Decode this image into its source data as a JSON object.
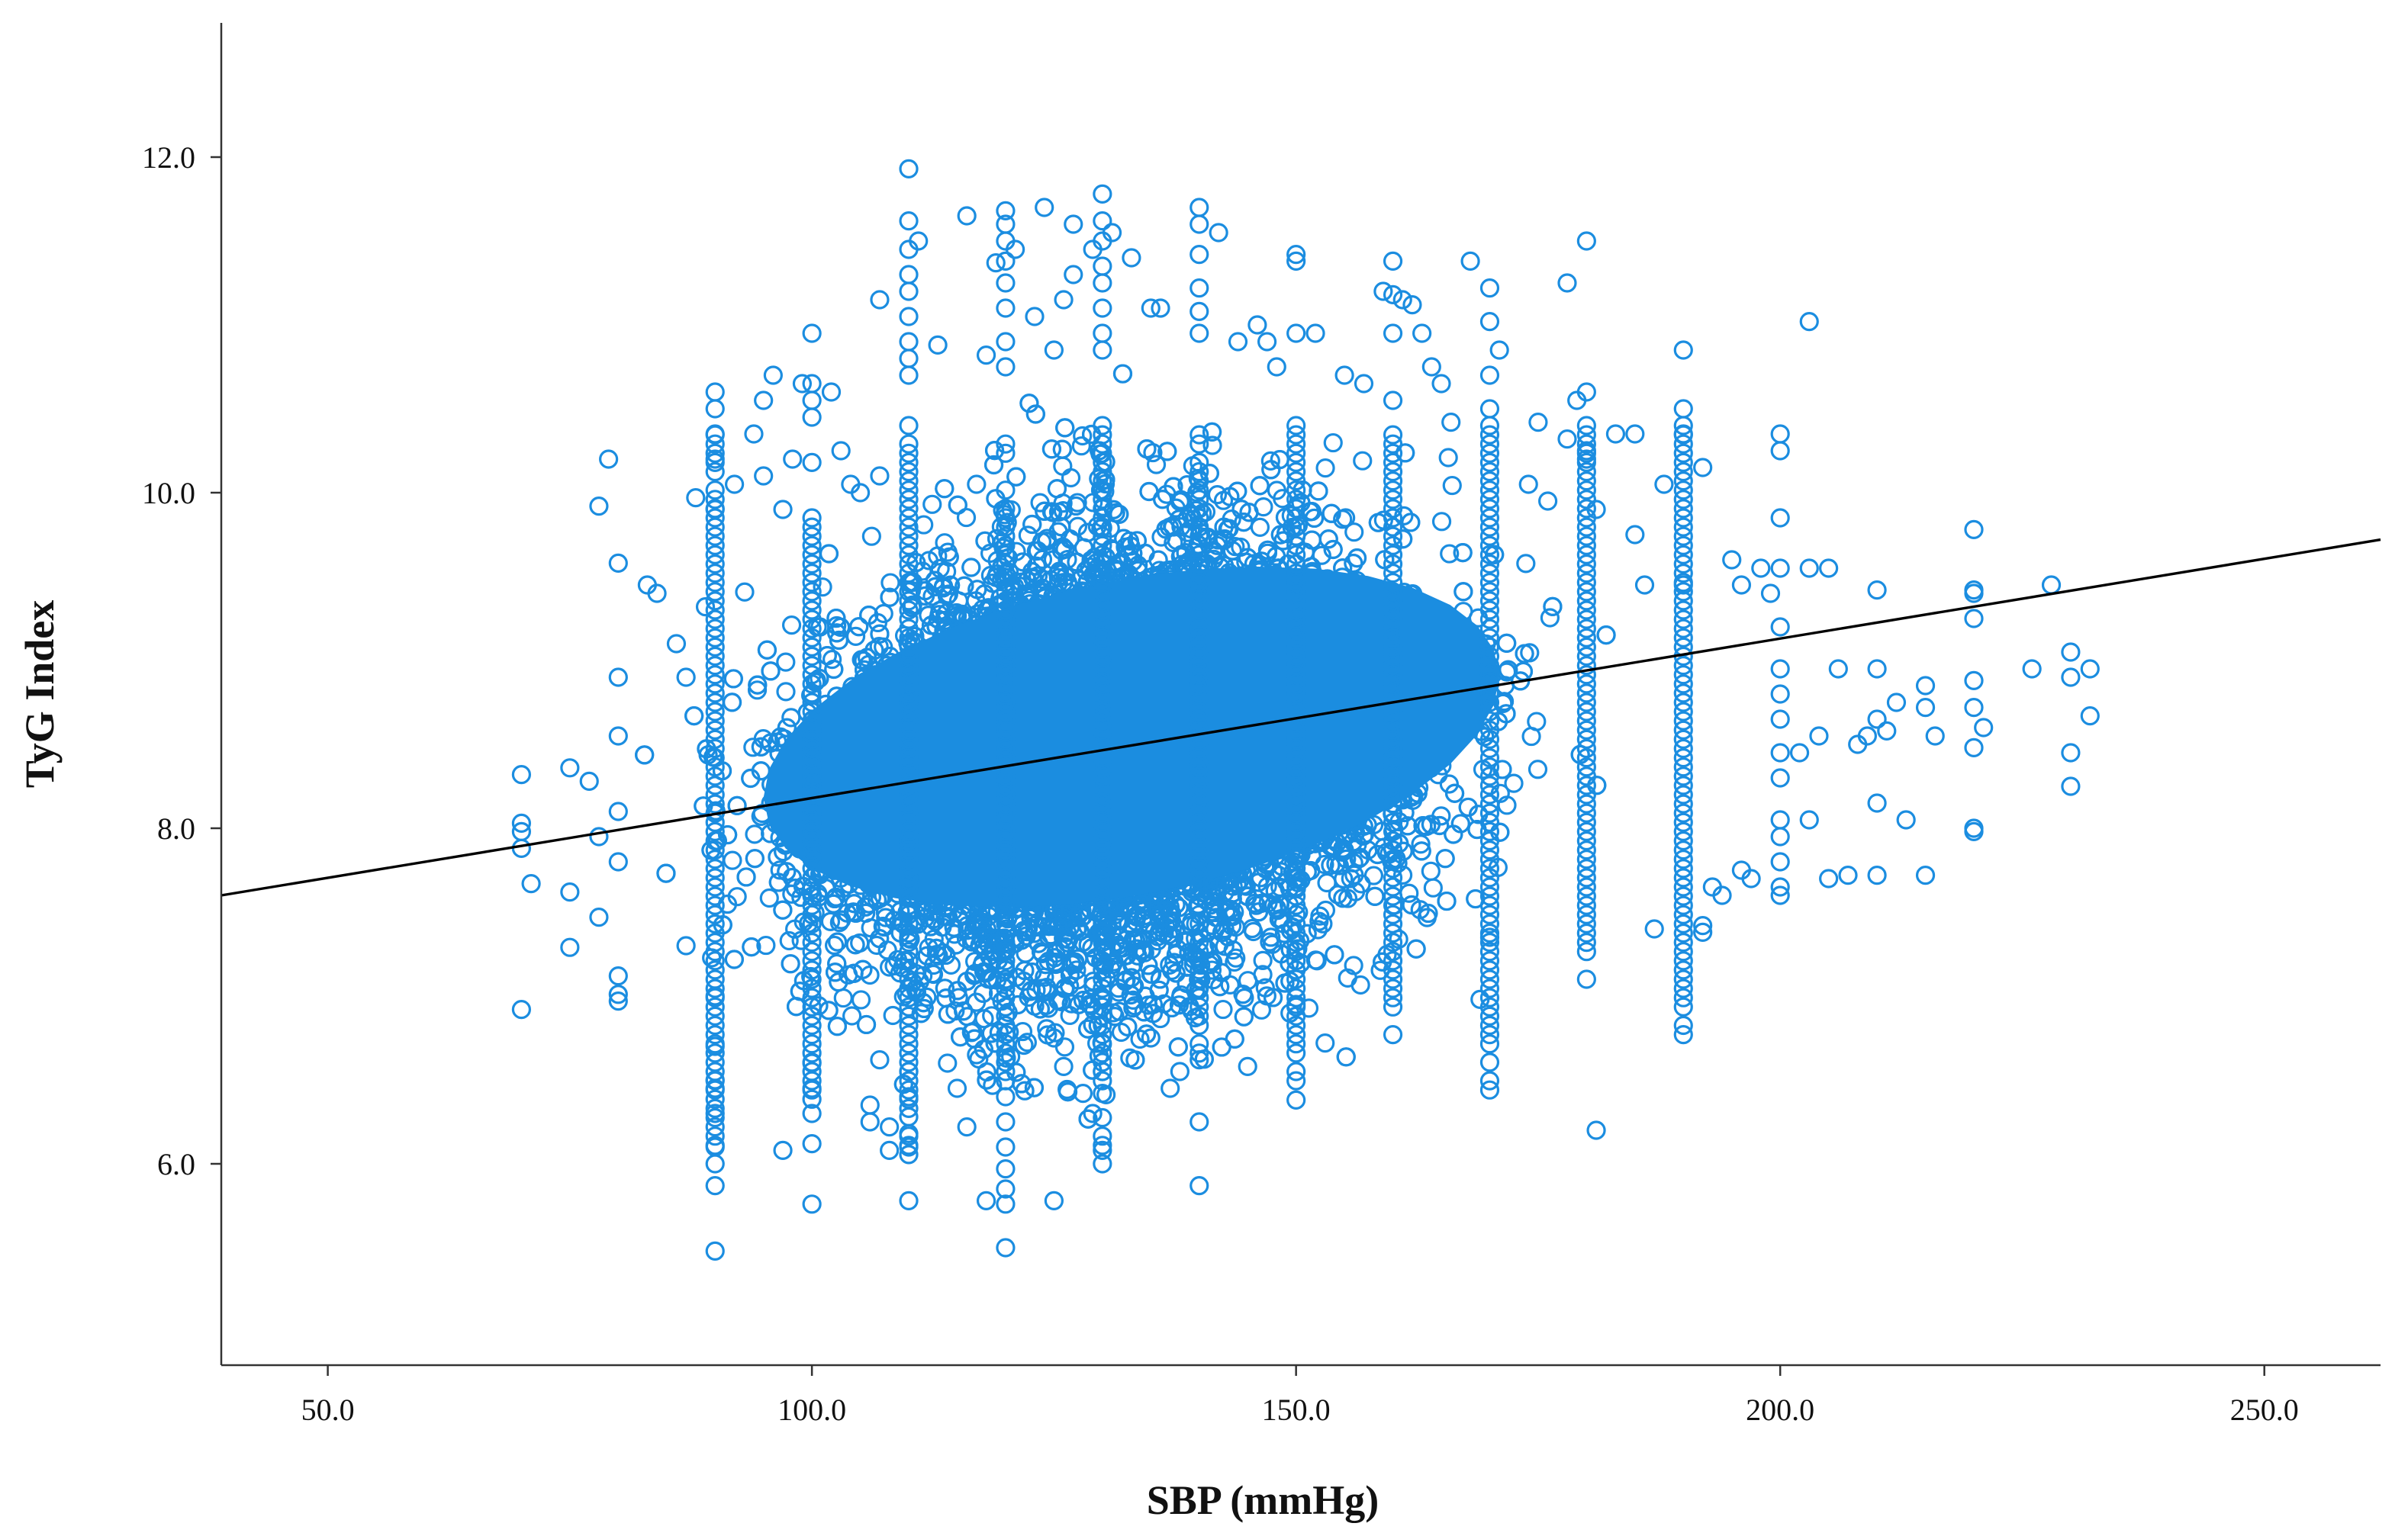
{
  "chart_data": {
    "type": "scatter",
    "title": "",
    "xlabel": "SBP (mmHg)",
    "ylabel": "TyG Index",
    "xlim": [
      39,
      262
    ],
    "ylim": [
      4.8,
      12.8
    ],
    "x_ticks": [
      50,
      100,
      150,
      200,
      250
    ],
    "x_tick_labels": [
      "50.0",
      "100.0",
      "150.0",
      "200.0",
      "250.0"
    ],
    "y_ticks": [
      6,
      8,
      10,
      12
    ],
    "y_tick_labels": [
      "6.0",
      "8.0",
      "10.0",
      "12.0"
    ],
    "grid": false,
    "legend": "none",
    "marker": "open-circle",
    "point_color": "#1b8de0",
    "line_color": "#000000",
    "fit_line": {
      "x": [
        39,
        262
      ],
      "y": [
        7.6,
        9.72
      ]
    },
    "series": [
      {
        "points": [
          [
            70,
            8.32
          ],
          [
            70,
            8.03
          ],
          [
            70,
            7.98
          ],
          [
            70,
            7.88
          ],
          [
            70,
            6.92
          ],
          [
            71,
            7.67
          ],
          [
            75,
            7.62
          ],
          [
            75,
            7.29
          ],
          [
            75,
            8.36
          ],
          [
            77,
            8.28
          ],
          [
            78,
            7.47
          ],
          [
            78,
            7.95
          ],
          [
            78,
            9.92
          ],
          [
            79,
            10.2
          ],
          [
            80,
            9.58
          ],
          [
            80,
            8.9
          ],
          [
            80,
            7.12
          ],
          [
            80,
            6.97
          ],
          [
            80,
            7.01
          ],
          [
            80,
            8.55
          ],
          [
            80,
            8.1
          ],
          [
            80,
            7.8
          ],
          [
            83,
            9.45
          ],
          [
            84,
            9.4
          ],
          [
            86,
            9.1
          ],
          [
            87,
            8.9
          ],
          [
            87,
            7.3
          ],
          [
            88,
            9.97
          ],
          [
            89,
            9.32
          ],
          [
            90,
            10.6
          ],
          [
            90,
            10.5
          ],
          [
            90,
            10.35
          ],
          [
            90,
            10.2
          ],
          [
            90,
            9.9
          ],
          [
            90,
            7.0
          ],
          [
            90,
            6.7
          ],
          [
            90,
            6.5
          ],
          [
            90,
            6.45
          ],
          [
            90,
            6.3
          ],
          [
            90,
            6.1
          ],
          [
            90,
            5.87
          ],
          [
            90,
            5.48
          ],
          [
            92,
            10.05
          ],
          [
            94,
            10.35
          ],
          [
            95,
            10.55
          ],
          [
            95,
            10.1
          ],
          [
            96,
            10.7
          ],
          [
            97,
            9.9
          ],
          [
            97,
            6.08
          ],
          [
            98,
            10.2
          ],
          [
            99,
            10.65
          ],
          [
            100,
            10.95
          ],
          [
            100,
            10.65
          ],
          [
            100,
            10.55
          ],
          [
            100,
            10.45
          ],
          [
            100,
            6.6
          ],
          [
            100,
            6.45
          ],
          [
            100,
            6.3
          ],
          [
            100,
            6.12
          ],
          [
            100,
            5.76
          ],
          [
            102,
            10.6
          ],
          [
            103,
            10.25
          ],
          [
            104,
            10.05
          ],
          [
            105,
            10.0
          ],
          [
            106,
            6.25
          ],
          [
            106,
            6.35
          ],
          [
            107,
            10.1
          ],
          [
            107,
            11.15
          ],
          [
            107,
            6.62
          ],
          [
            108,
            6.22
          ],
          [
            108,
            6.08
          ],
          [
            110,
            11.93
          ],
          [
            110,
            11.62
          ],
          [
            110,
            11.45
          ],
          [
            110,
            11.3
          ],
          [
            110,
            11.2
          ],
          [
            110,
            11.05
          ],
          [
            110,
            10.9
          ],
          [
            110,
            10.8
          ],
          [
            110,
            10.7
          ],
          [
            110,
            6.55
          ],
          [
            110,
            6.4
          ],
          [
            110,
            6.28
          ],
          [
            110,
            6.18
          ],
          [
            110,
            6.1
          ],
          [
            110,
            5.78
          ],
          [
            111,
            11.5
          ],
          [
            113,
            10.88
          ],
          [
            114,
            6.6
          ],
          [
            115,
            6.45
          ],
          [
            116,
            6.22
          ],
          [
            116,
            11.65
          ],
          [
            117,
            10.05
          ],
          [
            117,
            6.65
          ],
          [
            118,
            10.82
          ],
          [
            118,
            5.78
          ],
          [
            119,
            11.37
          ],
          [
            120,
            11.68
          ],
          [
            120,
            11.6
          ],
          [
            120,
            11.5
          ],
          [
            120,
            11.38
          ],
          [
            120,
            11.25
          ],
          [
            120,
            11.1
          ],
          [
            120,
            10.9
          ],
          [
            120,
            10.75
          ],
          [
            120,
            6.55
          ],
          [
            120,
            6.4
          ],
          [
            120,
            6.25
          ],
          [
            120,
            6.1
          ],
          [
            120,
            5.97
          ],
          [
            120,
            5.85
          ],
          [
            120,
            5.76
          ],
          [
            120,
            5.5
          ],
          [
            121,
            11.45
          ],
          [
            123,
            11.05
          ],
          [
            124,
            11.7
          ],
          [
            125,
            10.85
          ],
          [
            125,
            6.75
          ],
          [
            125,
            5.78
          ],
          [
            126,
            11.15
          ],
          [
            126,
            6.58
          ],
          [
            127,
            11.6
          ],
          [
            127,
            11.3
          ],
          [
            128,
            6.42
          ],
          [
            129,
            11.45
          ],
          [
            129,
            6.3
          ],
          [
            130,
            11.78
          ],
          [
            130,
            11.62
          ],
          [
            130,
            11.5
          ],
          [
            130,
            11.35
          ],
          [
            130,
            11.25
          ],
          [
            130,
            11.1
          ],
          [
            130,
            10.95
          ],
          [
            130,
            10.85
          ],
          [
            130,
            6.55
          ],
          [
            130,
            6.42
          ],
          [
            130,
            6.08
          ],
          [
            130,
            6.0
          ],
          [
            131,
            11.55
          ],
          [
            133,
            11.4
          ],
          [
            135,
            11.1
          ],
          [
            135,
            6.75
          ],
          [
            136,
            11.1
          ],
          [
            137,
            6.45
          ],
          [
            138,
            6.55
          ],
          [
            140,
            11.7
          ],
          [
            140,
            11.6
          ],
          [
            140,
            11.42
          ],
          [
            140,
            11.22
          ],
          [
            140,
            11.08
          ],
          [
            140,
            10.95
          ],
          [
            140,
            6.88
          ],
          [
            140,
            6.62
          ],
          [
            140,
            6.25
          ],
          [
            140,
            5.87
          ],
          [
            142,
            11.55
          ],
          [
            144,
            10.9
          ],
          [
            145,
            6.58
          ],
          [
            146,
            11.0
          ],
          [
            147,
            10.9
          ],
          [
            148,
            10.75
          ],
          [
            150,
            11.42
          ],
          [
            150,
            11.38
          ],
          [
            150,
            10.95
          ],
          [
            150,
            6.95
          ],
          [
            150,
            6.38
          ],
          [
            152,
            10.95
          ],
          [
            153,
            6.72
          ],
          [
            155,
            10.7
          ],
          [
            157,
            10.65
          ],
          [
            159,
            11.2
          ],
          [
            160,
            11.38
          ],
          [
            160,
            11.18
          ],
          [
            160,
            10.95
          ],
          [
            160,
            10.55
          ],
          [
            161,
            11.15
          ],
          [
            162,
            11.12
          ],
          [
            163,
            10.95
          ],
          [
            164,
            10.75
          ],
          [
            165,
            10.65
          ],
          [
            166,
            10.42
          ],
          [
            168,
            11.38
          ],
          [
            169,
            6.98
          ],
          [
            170,
            11.22
          ],
          [
            170,
            11.02
          ],
          [
            170,
            10.7
          ],
          [
            170,
            10.5
          ],
          [
            170,
            7.35
          ],
          [
            171,
            10.85
          ],
          [
            174,
            10.05
          ],
          [
            175,
            10.42
          ],
          [
            176,
            9.95
          ],
          [
            178,
            11.25
          ],
          [
            178,
            10.32
          ],
          [
            179,
            10.55
          ],
          [
            180,
            11.5
          ],
          [
            180,
            10.6
          ],
          [
            180,
            10.25
          ],
          [
            180,
            10.2
          ],
          [
            181,
            6.2
          ],
          [
            181,
            9.9
          ],
          [
            183,
            10.35
          ],
          [
            185,
            10.35
          ],
          [
            185,
            9.75
          ],
          [
            186,
            9.45
          ],
          [
            187,
            7.4
          ],
          [
            188,
            10.05
          ],
          [
            190,
            10.85
          ],
          [
            190,
            10.5
          ],
          [
            190,
            10.35
          ],
          [
            190,
            9.45
          ],
          [
            192,
            10.15
          ],
          [
            192,
            7.42
          ],
          [
            192,
            7.38
          ],
          [
            193,
            7.65
          ],
          [
            194,
            7.6
          ],
          [
            195,
            9.6
          ],
          [
            196,
            9.45
          ],
          [
            196,
            7.75
          ],
          [
            197,
            7.7
          ],
          [
            198,
            9.55
          ],
          [
            199,
            9.4
          ],
          [
            200,
            10.35
          ],
          [
            200,
            10.25
          ],
          [
            200,
            9.85
          ],
          [
            200,
            9.55
          ],
          [
            200,
            9.2
          ],
          [
            200,
            8.95
          ],
          [
            200,
            8.8
          ],
          [
            200,
            8.65
          ],
          [
            200,
            8.45
          ],
          [
            200,
            8.3
          ],
          [
            200,
            8.05
          ],
          [
            200,
            7.95
          ],
          [
            200,
            7.8
          ],
          [
            200,
            7.65
          ],
          [
            200,
            7.6
          ],
          [
            202,
            8.45
          ],
          [
            203,
            9.55
          ],
          [
            203,
            11.02
          ],
          [
            203,
            8.05
          ],
          [
            204,
            8.55
          ],
          [
            205,
            9.55
          ],
          [
            205,
            7.7
          ],
          [
            206,
            8.95
          ],
          [
            207,
            7.72
          ],
          [
            208,
            8.5
          ],
          [
            209,
            8.55
          ],
          [
            210,
            9.42
          ],
          [
            210,
            8.95
          ],
          [
            210,
            8.65
          ],
          [
            210,
            8.15
          ],
          [
            210,
            7.72
          ],
          [
            211,
            8.58
          ],
          [
            212,
            8.75
          ],
          [
            213,
            8.05
          ],
          [
            215,
            8.85
          ],
          [
            215,
            8.72
          ],
          [
            215,
            7.72
          ],
          [
            216,
            8.55
          ],
          [
            220,
            9.78
          ],
          [
            220,
            9.42
          ],
          [
            220,
            9.4
          ],
          [
            220,
            9.25
          ],
          [
            220,
            8.88
          ],
          [
            220,
            8.72
          ],
          [
            220,
            8.48
          ],
          [
            220,
            8.0
          ],
          [
            220,
            7.98
          ],
          [
            221,
            8.6
          ],
          [
            226,
            8.95
          ],
          [
            228,
            9.45
          ],
          [
            230,
            9.05
          ],
          [
            230,
            8.9
          ],
          [
            230,
            8.45
          ],
          [
            230,
            8.25
          ],
          [
            232,
            8.95
          ],
          [
            232,
            8.67
          ]
        ]
      }
    ]
  }
}
